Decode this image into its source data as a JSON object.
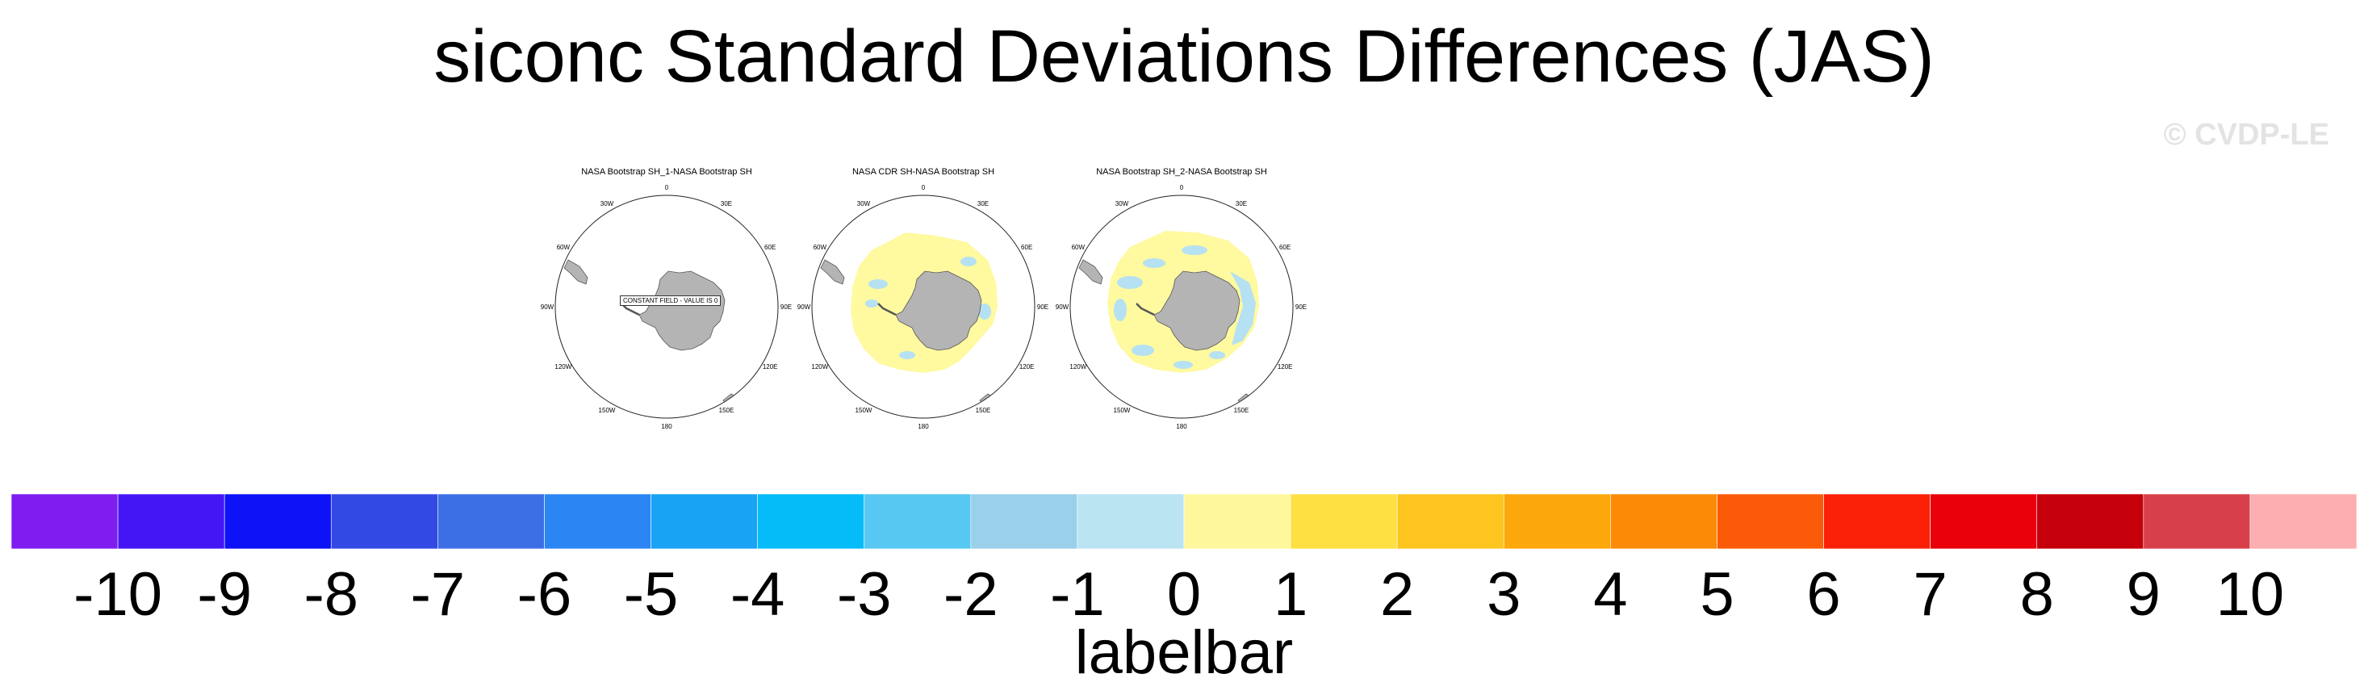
{
  "title": "siconc Standard Deviations Differences (JAS)",
  "watermark": "© CVDP-LE",
  "panels": [
    {
      "title": "NASA Bootstrap SH_1-NASA Bootstrap SH",
      "note": "CONSTANT FIELD - VALUE IS 0",
      "fill": "none"
    },
    {
      "title": "NASA CDR SH-NASA Bootstrap SH",
      "note": "",
      "fill": "yellow"
    },
    {
      "title": "NASA Bootstrap SH_2-NASA Bootstrap SH",
      "note": "",
      "fill": "mixed"
    }
  ],
  "longitude_labels": [
    "0",
    "30E",
    "60E",
    "90E",
    "120E",
    "150E",
    "180",
    "150W",
    "120W",
    "90W",
    "60W",
    "30W"
  ],
  "colors": {
    "land": "#b4b4b4",
    "coast": "#555555",
    "positive_small": "#fff9a0",
    "negative_small": "#b5e1f2"
  },
  "labelbar": {
    "title": "labelbar",
    "colors": [
      "#7f1cf0",
      "#4516f5",
      "#0e12f7",
      "#3349e4",
      "#3c6fe6",
      "#2b86f4",
      "#18a3f5",
      "#05bcf8",
      "#57c8f2",
      "#9ad0ea",
      "#bbe4f3",
      "#fef79c",
      "#fee043",
      "#fdc51e",
      "#fca80a",
      "#fb8b06",
      "#fb5b09",
      "#fb2008",
      "#e9000a",
      "#c5000b",
      "#d7404a",
      "#fcaeb1"
    ],
    "labels": [
      "-10",
      "-9",
      "-8",
      "-7",
      "-6",
      "-5",
      "-4",
      "-3",
      "-2",
      "-1",
      "0",
      "1",
      "2",
      "3",
      "4",
      "5",
      "6",
      "7",
      "8",
      "9",
      "10"
    ]
  }
}
